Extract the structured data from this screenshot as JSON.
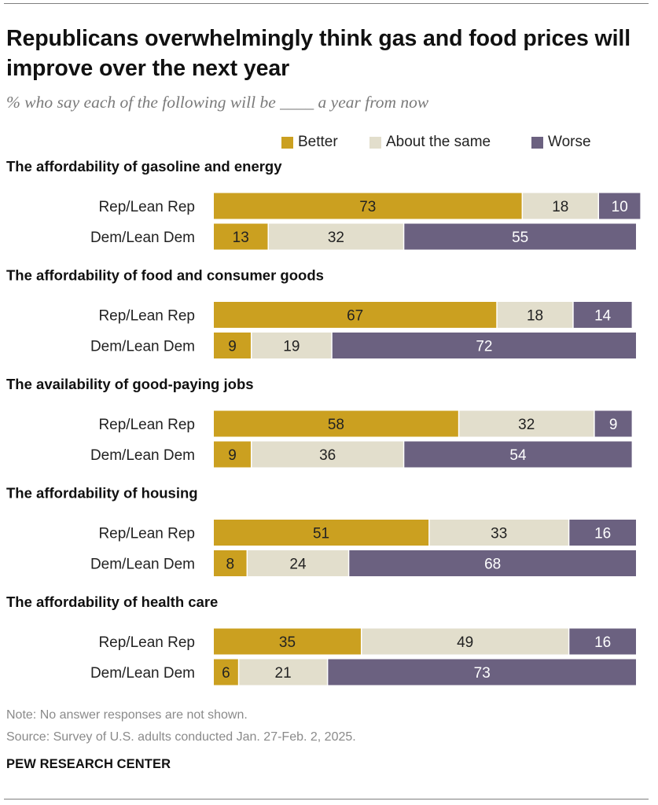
{
  "title": "Republicans overwhelmingly think gas and food prices will improve over the next year",
  "subtitle": "% who say each of the following will be ____ a year from now",
  "colors": {
    "better": "#CBA020",
    "same": "#E2DECC",
    "worse": "#6B6180",
    "text_light": "#ffffff",
    "text_dark": "#222222"
  },
  "chart_data": {
    "type": "bar",
    "orientation": "horizontal",
    "stacked": true,
    "legend": [
      "Better",
      "About the same",
      "Worse"
    ],
    "legend_placement": "top",
    "panels": [
      {
        "heading": "The affordability of gasoline and energy",
        "rows": [
          {
            "label": "Rep/Lean Rep",
            "values": [
              73,
              18,
              10
            ]
          },
          {
            "label": "Dem/Lean Dem",
            "values": [
              13,
              32,
              55
            ]
          }
        ]
      },
      {
        "heading": "The affordability of food and consumer goods",
        "rows": [
          {
            "label": "Rep/Lean Rep",
            "values": [
              67,
              18,
              14
            ]
          },
          {
            "label": "Dem/Lean Dem",
            "values": [
              9,
              19,
              72
            ]
          }
        ]
      },
      {
        "heading": "The availability of good-paying jobs",
        "rows": [
          {
            "label": "Rep/Lean Rep",
            "values": [
              58,
              32,
              9
            ]
          },
          {
            "label": "Dem/Lean Dem",
            "values": [
              9,
              36,
              54
            ]
          }
        ]
      },
      {
        "heading": "The affordability of housing",
        "rows": [
          {
            "label": "Rep/Lean Rep",
            "values": [
              51,
              33,
              16
            ]
          },
          {
            "label": "Dem/Lean Dem",
            "values": [
              8,
              24,
              68
            ]
          }
        ]
      },
      {
        "heading": "The affordability of health care",
        "rows": [
          {
            "label": "Rep/Lean Rep",
            "values": [
              35,
              49,
              16
            ]
          },
          {
            "label": "Dem/Lean Dem",
            "values": [
              6,
              21,
              73
            ]
          }
        ]
      }
    ]
  },
  "note": "Note: No answer responses are not shown.",
  "source": "Source: Survey of U.S. adults conducted Jan. 27-Feb. 2, 2025.",
  "brand": "PEW RESEARCH CENTER"
}
